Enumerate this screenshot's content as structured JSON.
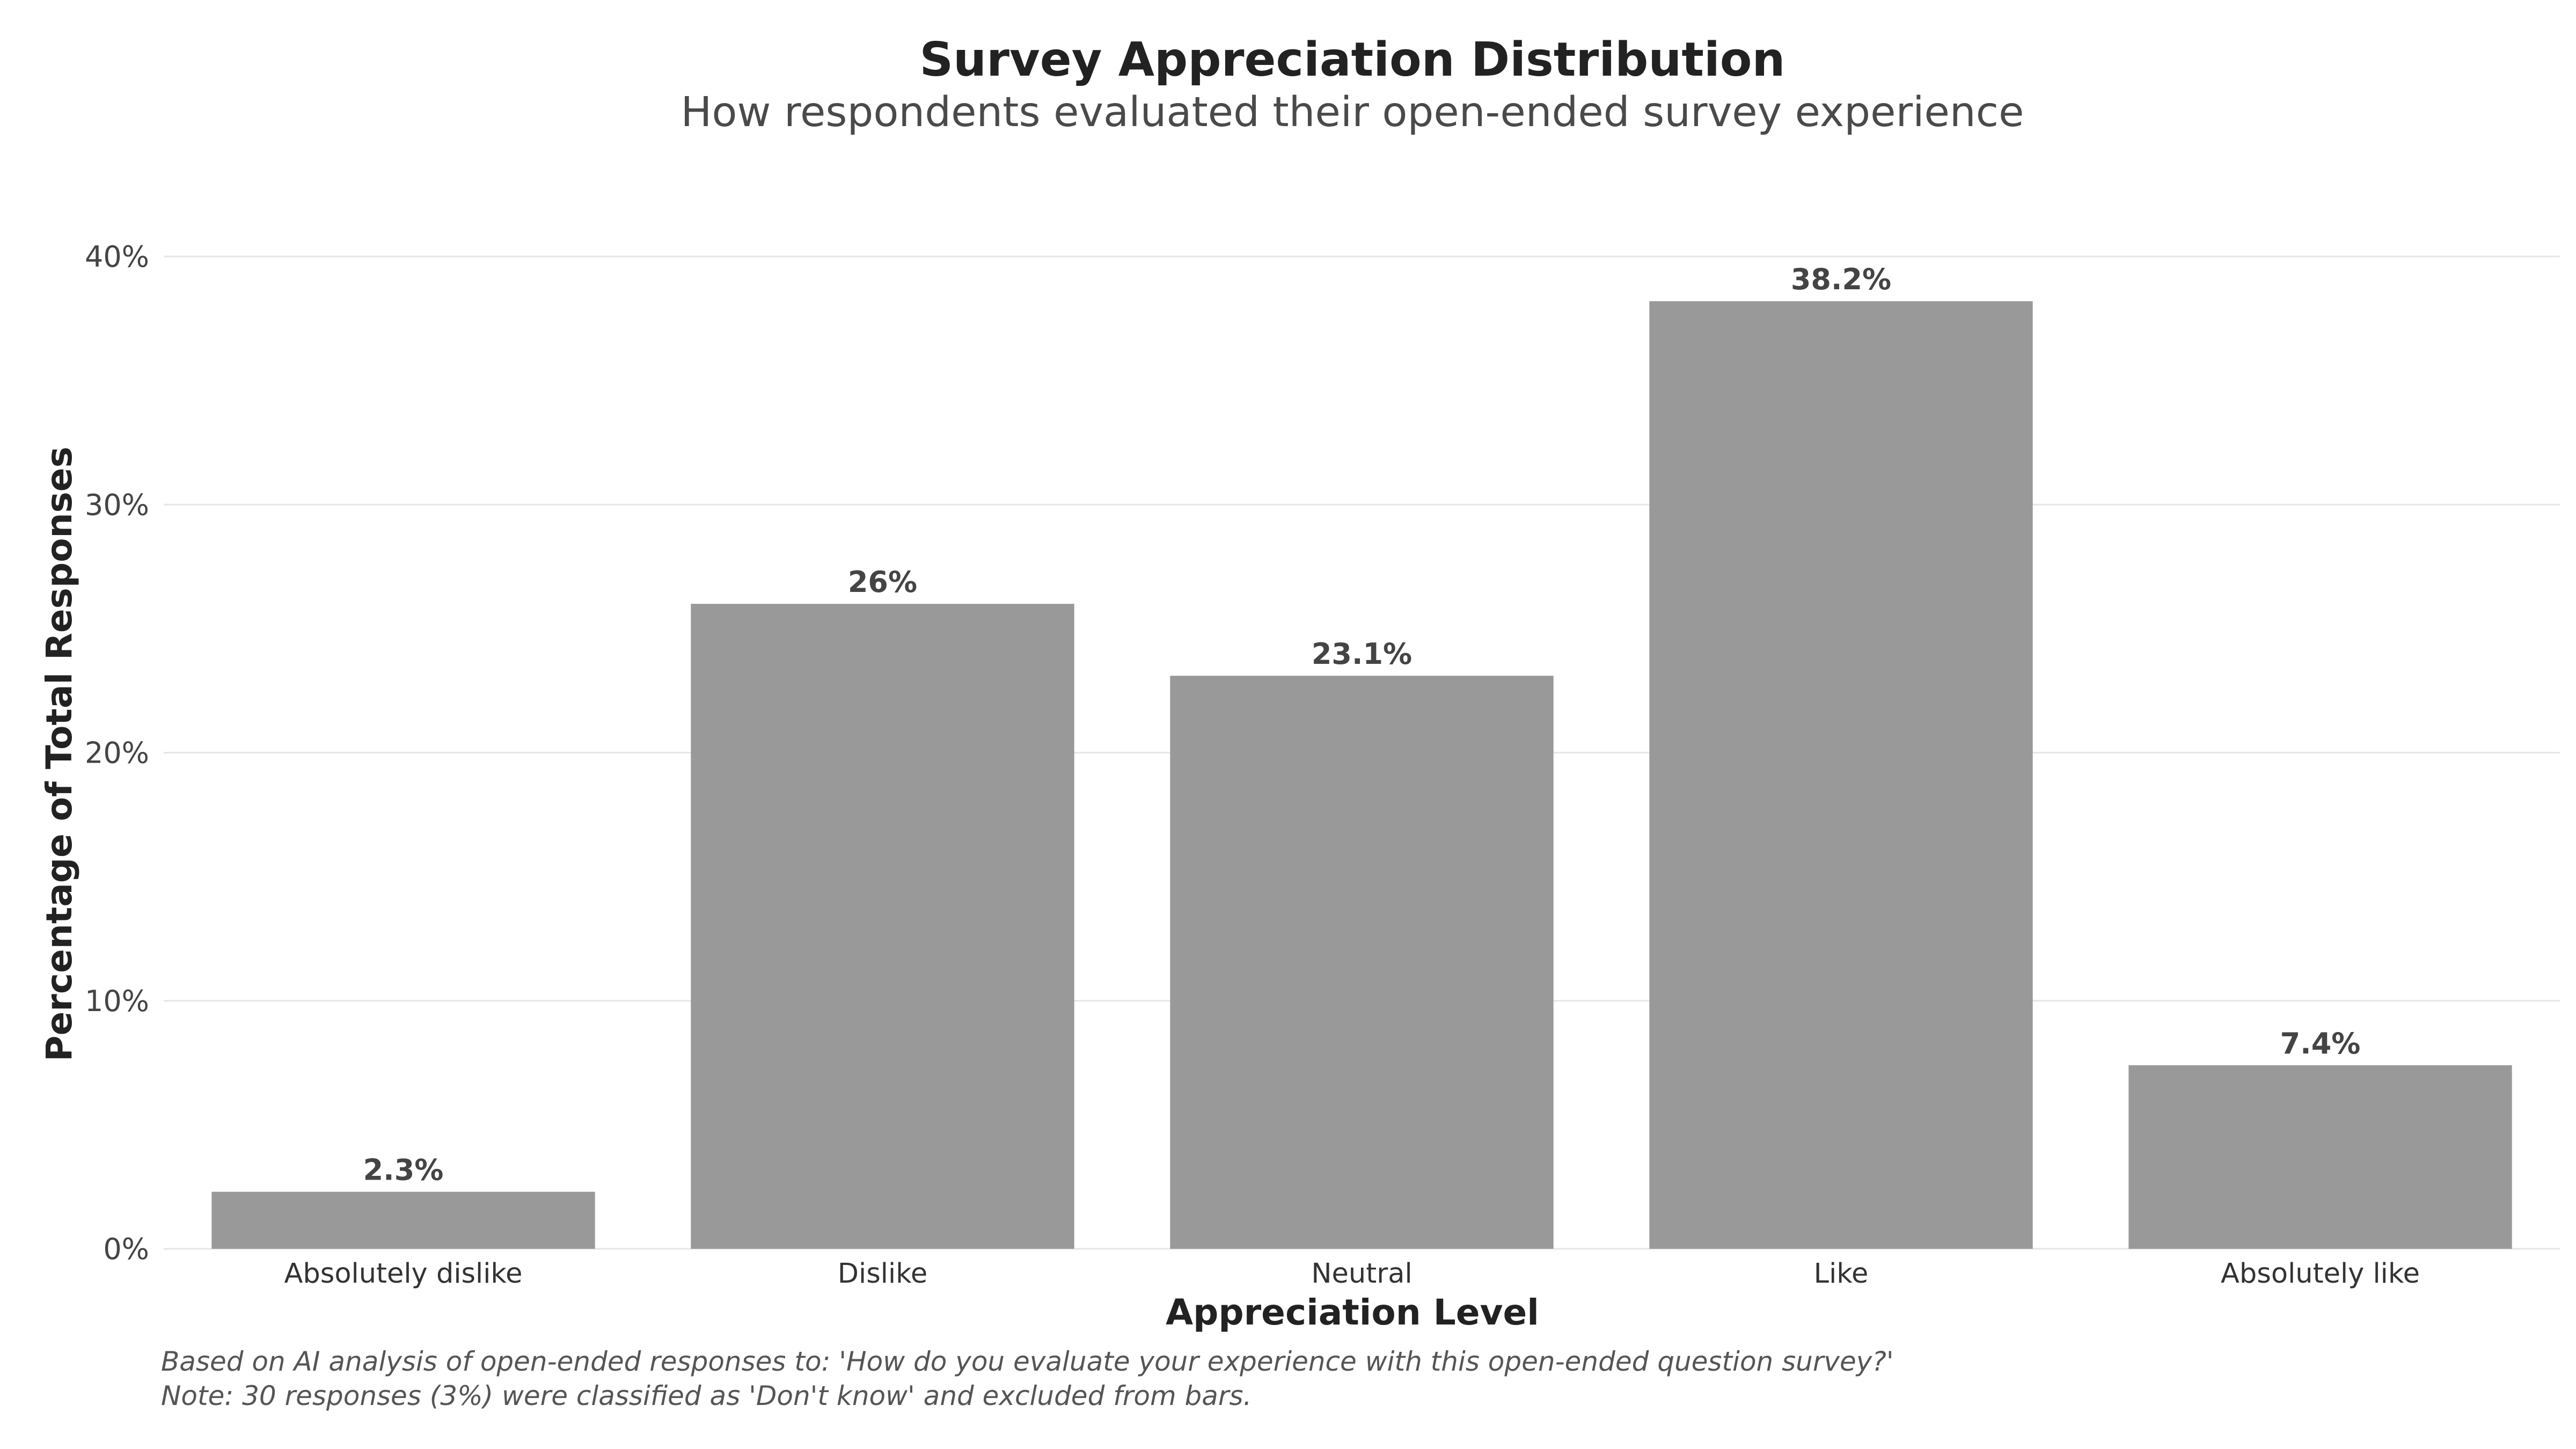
{
  "chart_data": {
    "type": "bar",
    "title": "Survey Appreciation Distribution",
    "subtitle": "How respondents evaluated their open-ended survey experience",
    "xlabel": "Appreciation Level",
    "ylabel": "Percentage of Total Responses",
    "categories": [
      "Absolutely dislike",
      "Dislike",
      "Neutral",
      "Like",
      "Absolutely like"
    ],
    "values": [
      2.3,
      26,
      23.1,
      38.2,
      7.4
    ],
    "data_labels": [
      "2.3%",
      "26%",
      "23.1%",
      "38.2%",
      "7.4%"
    ],
    "ylim": [
      0,
      40
    ],
    "yticks": [
      0,
      10,
      20,
      30,
      40
    ],
    "ytick_labels": [
      "0%",
      "10%",
      "20%",
      "30%",
      "40%"
    ],
    "grid": true,
    "legend": "none",
    "bar_color": "#999999"
  },
  "captions": {
    "line1": "Based on AI analysis of open-ended responses to: 'How do you evaluate your experience with this open-ended question survey?'",
    "line2": "Note: 30 responses (3%) were classified as 'Don't know' and excluded from bars."
  }
}
